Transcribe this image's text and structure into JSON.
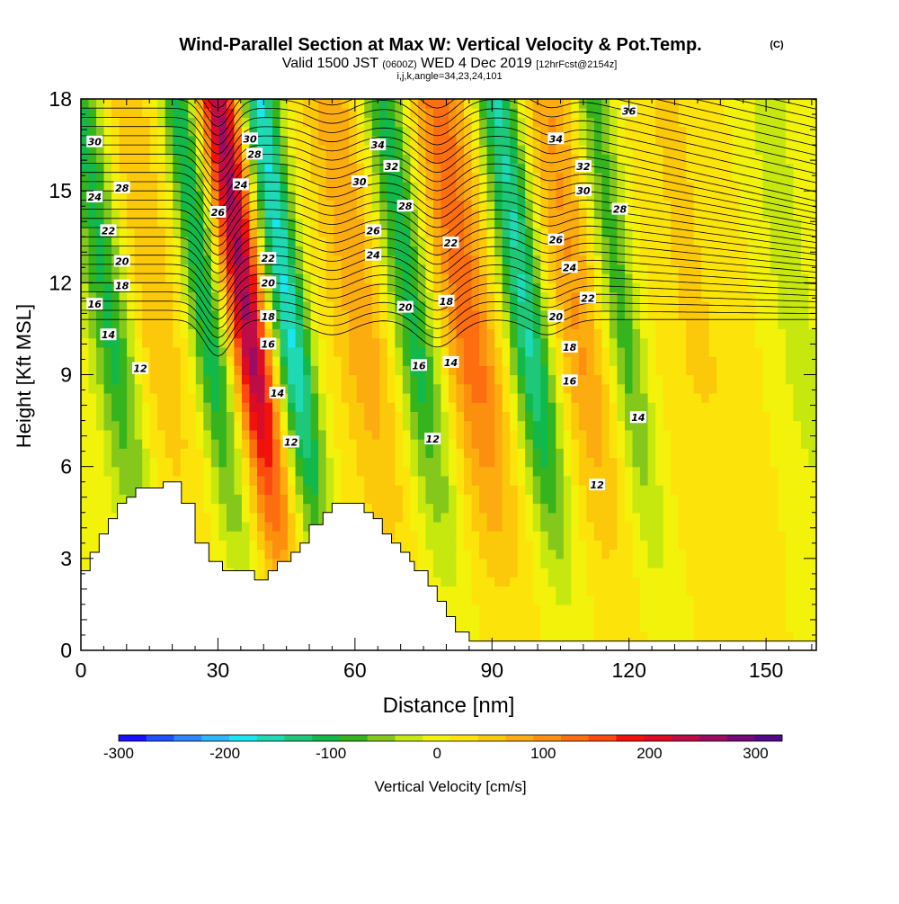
{
  "title": {
    "main": "Wind-Parallel Section at Max W: Vertical Velocity & Pot.Temp.",
    "copyright": "(C)",
    "valid_prefix": "Valid 1500 JST",
    "utc": "(0600Z)",
    "valid_date": "WED 4 Dec 2019",
    "forecast": "[12hrFcst@2154z]",
    "indices": "i,j,k,angle=34,23,24,101"
  },
  "chart_data": {
    "type": "heatmap",
    "xlabel": "Distance [nm]",
    "ylabel": "Height [Kft MSL]",
    "xlim": [
      0,
      161
    ],
    "ylim": [
      0,
      18
    ],
    "xticks": [
      0,
      30,
      60,
      90,
      120,
      150
    ],
    "yticks": [
      0,
      3,
      6,
      9,
      12,
      15,
      18
    ],
    "colorbar": {
      "label": "Vertical Velocity [cm/s]",
      "ticks": [
        "-300",
        "-200",
        "-100",
        "0",
        "100",
        "200",
        "300"
      ],
      "colors": [
        "#1a0fff",
        "#2050ff",
        "#2e86ff",
        "#2fb6ff",
        "#19e6f2",
        "#1ed9b4",
        "#1fc878",
        "#12b84a",
        "#35b41e",
        "#84c81c",
        "#c6e80e",
        "#f2f20a",
        "#fce40a",
        "#fcc80a",
        "#fcac0e",
        "#fc900e",
        "#fc6e10",
        "#fc4a10",
        "#f2120c",
        "#dc0c26",
        "#be0c46",
        "#9c0c62",
        "#78087a",
        "#54088a"
      ],
      "min": -300,
      "max": 325
    },
    "updraft_bands": [
      {
        "x": 9,
        "w": 8.0,
        "amp": 45
      },
      {
        "x": 30,
        "w": 4.2,
        "amp": 240
      },
      {
        "x": 55,
        "w": 6.5,
        "amp": 70
      },
      {
        "x": 78,
        "w": 6.0,
        "amp": 120
      },
      {
        "x": 102,
        "w": 5.5,
        "amp": 80
      },
      {
        "x": 128,
        "w": 8.0,
        "amp": 30
      }
    ],
    "downdraft_bands": [
      {
        "x": 0,
        "w": 5.0,
        "amp": 120
      },
      {
        "x": 21,
        "w": 4.0,
        "amp": 130
      },
      {
        "x": 39,
        "w": 4.0,
        "amp": 185
      },
      {
        "x": 66,
        "w": 5.0,
        "amp": 120
      },
      {
        "x": 91,
        "w": 4.5,
        "amp": 160
      },
      {
        "x": 112,
        "w": 4.0,
        "amp": 90
      },
      {
        "x": 150,
        "w": 5.0,
        "amp": 40
      }
    ],
    "terrain_kft": [
      2.6,
      2.6,
      3.2,
      3.2,
      3.8,
      3.8,
      4.3,
      4.3,
      4.8,
      4.8,
      5.0,
      5.0,
      5.3,
      5.3,
      5.3,
      5.3,
      5.3,
      5.3,
      5.5,
      5.5,
      5.5,
      5.5,
      4.8,
      4.8,
      4.8,
      3.5,
      3.5,
      3.5,
      2.9,
      2.9,
      2.9,
      2.6,
      2.6,
      2.6,
      2.6,
      2.6,
      2.6,
      2.6,
      2.3,
      2.3,
      2.3,
      2.6,
      2.6,
      2.9,
      2.9,
      2.9,
      3.2,
      3.2,
      3.5,
      3.5,
      4.1,
      4.1,
      4.1,
      4.5,
      4.5,
      4.8,
      4.8,
      4.8,
      4.8,
      4.8,
      4.8,
      4.8,
      4.5,
      4.5,
      4.3,
      4.3,
      3.8,
      3.8,
      3.5,
      3.5,
      3.2,
      3.2,
      2.9,
      2.6,
      2.6,
      2.6,
      2.1,
      2.1,
      1.6,
      1.6,
      1.1,
      1.1,
      0.6,
      0.6,
      0.6,
      0.3,
      0.3,
      0.3,
      0.3,
      0.3,
      0.3,
      0.3,
      0.3,
      0.3,
      0.3,
      0.3,
      0.3,
      0.3,
      0.3,
      0.3,
      0.3,
      0.3,
      0.3,
      0.3,
      0.3,
      0.3,
      0.3,
      0.3,
      0.3,
      0.3,
      0.3,
      0.3,
      0.3,
      0.3,
      0.3,
      0.3,
      0.3,
      0.3,
      0.3,
      0.3,
      0.3,
      0.3,
      0.3,
      0.3,
      0.3,
      0.3,
      0.3,
      0.3,
      0.3,
      0.3,
      0.3,
      0.3,
      0.3,
      0.3,
      0.3,
      0.3,
      0.3,
      0.3,
      0.3,
      0.3,
      0.3,
      0.3,
      0.3,
      0.3,
      0.3,
      0.3,
      0.3,
      0.3,
      0.3,
      0.3,
      0.3,
      0.3,
      0.3,
      0.3,
      0.3,
      0.3,
      0.3,
      0.3,
      0.3,
      0.3,
      0.3,
      0.3,
      0.3,
      0.3,
      0.3
    ],
    "isentrope_labels": [
      {
        "text": "30",
        "x": 3,
        "y": 16.6
      },
      {
        "text": "28",
        "x": 9,
        "y": 15.1
      },
      {
        "text": "24",
        "x": 3,
        "y": 14.8
      },
      {
        "text": "22",
        "x": 6,
        "y": 13.7
      },
      {
        "text": "20",
        "x": 9,
        "y": 12.7
      },
      {
        "text": "18",
        "x": 9,
        "y": 11.9
      },
      {
        "text": "16",
        "x": 3,
        "y": 11.3
      },
      {
        "text": "14",
        "x": 6,
        "y": 10.3
      },
      {
        "text": "12",
        "x": 13,
        "y": 9.2
      },
      {
        "text": "30",
        "x": 37,
        "y": 16.7
      },
      {
        "text": "28",
        "x": 38,
        "y": 16.2
      },
      {
        "text": "24",
        "x": 35,
        "y": 15.2
      },
      {
        "text": "26",
        "x": 30,
        "y": 14.3
      },
      {
        "text": "22",
        "x": 41,
        "y": 12.8
      },
      {
        "text": "20",
        "x": 41,
        "y": 12.0
      },
      {
        "text": "18",
        "x": 41,
        "y": 10.9
      },
      {
        "text": "16",
        "x": 41,
        "y": 10.0
      },
      {
        "text": "14",
        "x": 43,
        "y": 8.4
      },
      {
        "text": "12",
        "x": 46,
        "y": 6.8
      },
      {
        "text": "34",
        "x": 65,
        "y": 16.5
      },
      {
        "text": "32",
        "x": 68,
        "y": 15.8
      },
      {
        "text": "30",
        "x": 61,
        "y": 15.3
      },
      {
        "text": "28",
        "x": 71,
        "y": 14.5
      },
      {
        "text": "26",
        "x": 64,
        "y": 13.7
      },
      {
        "text": "24",
        "x": 64,
        "y": 12.9
      },
      {
        "text": "22",
        "x": 81,
        "y": 13.3
      },
      {
        "text": "20",
        "x": 71,
        "y": 11.2
      },
      {
        "text": "18",
        "x": 80,
        "y": 11.4
      },
      {
        "text": "16",
        "x": 74,
        "y": 9.3
      },
      {
        "text": "14",
        "x": 81,
        "y": 9.4
      },
      {
        "text": "12",
        "x": 77,
        "y": 6.9
      },
      {
        "text": "36",
        "x": 120,
        "y": 17.6
      },
      {
        "text": "34",
        "x": 104,
        "y": 16.7
      },
      {
        "text": "32",
        "x": 110,
        "y": 15.8
      },
      {
        "text": "30",
        "x": 110,
        "y": 15.0
      },
      {
        "text": "28",
        "x": 118,
        "y": 14.4
      },
      {
        "text": "26",
        "x": 104,
        "y": 13.4
      },
      {
        "text": "24",
        "x": 107,
        "y": 12.5
      },
      {
        "text": "22",
        "x": 111,
        "y": 11.5
      },
      {
        "text": "20",
        "x": 104,
        "y": 10.9
      },
      {
        "text": "18",
        "x": 107,
        "y": 9.9
      },
      {
        "text": "16",
        "x": 107,
        "y": 8.8
      },
      {
        "text": "14",
        "x": 122,
        "y": 7.6
      },
      {
        "text": "12",
        "x": 113,
        "y": 5.4
      }
    ]
  }
}
